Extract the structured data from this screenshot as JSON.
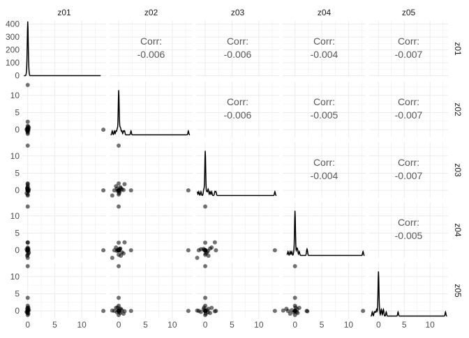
{
  "chart_data": {
    "type": "scatter",
    "variables": [
      "z01",
      "z02",
      "z03",
      "z04",
      "z05"
    ],
    "grid": true,
    "upper": {
      "label": "Corr:",
      "values": [
        {
          "row": "z01",
          "col": "z02",
          "corr": "-0.006"
        },
        {
          "row": "z01",
          "col": "z03",
          "corr": "-0.006"
        },
        {
          "row": "z01",
          "col": "z04",
          "corr": "-0.004"
        },
        {
          "row": "z01",
          "col": "z05",
          "corr": "-0.007"
        },
        {
          "row": "z02",
          "col": "z03",
          "corr": "-0.006"
        },
        {
          "row": "z02",
          "col": "z04",
          "corr": "-0.005"
        },
        {
          "row": "z02",
          "col": "z05",
          "corr": "-0.007"
        },
        {
          "row": "z03",
          "col": "z04",
          "corr": "-0.004"
        },
        {
          "row": "z03",
          "col": "z05",
          "corr": "-0.007"
        },
        {
          "row": "z04",
          "col": "z05",
          "corr": "-0.005"
        }
      ]
    },
    "diag": "density",
    "x_ticks": [
      [
        "0",
        "5",
        "10"
      ],
      [
        "0",
        "5",
        "10"
      ],
      [
        "0",
        "5",
        "10"
      ],
      [
        "0",
        "5",
        "10"
      ],
      [
        "0",
        "5",
        "10"
      ]
    ],
    "x_ranges": [
      [
        -1,
        14.5
      ],
      [
        -1.7,
        13.8
      ],
      [
        -1.7,
        13.8
      ],
      [
        -2.3,
        13.2
      ],
      [
        -1.8,
        13.5
      ]
    ],
    "y_ranges": [
      [
        -8,
        425
      ],
      [
        -2.2,
        14
      ],
      [
        -2.2,
        14
      ],
      [
        -2.2,
        14
      ],
      [
        -2.2,
        14
      ]
    ],
    "y_ticks": [
      [
        "0",
        "100",
        "200",
        "300",
        "400"
      ],
      [
        "0",
        "5",
        "10"
      ],
      [
        "0",
        "5",
        "10"
      ],
      [
        "0",
        "5",
        "10"
      ],
      [
        "0",
        "5",
        "10"
      ]
    ],
    "observations": [
      [
        14,
        0,
        0,
        0,
        0
      ],
      [
        0,
        13,
        0,
        0,
        0
      ],
      [
        0,
        0,
        13,
        0,
        0
      ],
      [
        0,
        0,
        0,
        12.7,
        0
      ],
      [
        0,
        0,
        0,
        0,
        13
      ],
      [
        0,
        2.3,
        0,
        0,
        0
      ],
      [
        0,
        0,
        2,
        0,
        0
      ],
      [
        0,
        0,
        0,
        2.2,
        0
      ],
      [
        0,
        0,
        0,
        0,
        3.8
      ],
      [
        0,
        0,
        0,
        0,
        1.5
      ],
      [
        0,
        0,
        0,
        0,
        -1.2
      ],
      [
        0,
        -0.8,
        0,
        0,
        0
      ],
      [
        0,
        0,
        -1.2,
        0,
        0
      ],
      [
        0,
        0,
        0,
        -1.3,
        0
      ],
      [
        0.1,
        0.2,
        -0.3,
        0.4,
        0.5
      ],
      [
        -0.1,
        -0.3,
        0.5,
        -0.2,
        -0.4
      ],
      [
        0.2,
        0.6,
        0.3,
        -0.6,
        0.2
      ],
      [
        -0.2,
        0.1,
        -0.8,
        0.3,
        -0.3
      ],
      [
        0,
        -0.5,
        1.2,
        0.8,
        0.9
      ],
      [
        0.1,
        0.9,
        0.1,
        -0.9,
        -0.8
      ],
      [
        0,
        -1.2,
        -1.5,
        -2.2,
        0.1
      ],
      [
        0,
        1.1,
        1.8,
        2.3,
        -0.1
      ],
      [
        -0.1,
        0.4,
        0.6,
        -1.6,
        0.6
      ],
      [
        0.1,
        -0.2,
        -0.2,
        0.1,
        1.0
      ],
      [
        0,
        0.3,
        0.9,
        0.5,
        -0.6
      ]
    ]
  }
}
